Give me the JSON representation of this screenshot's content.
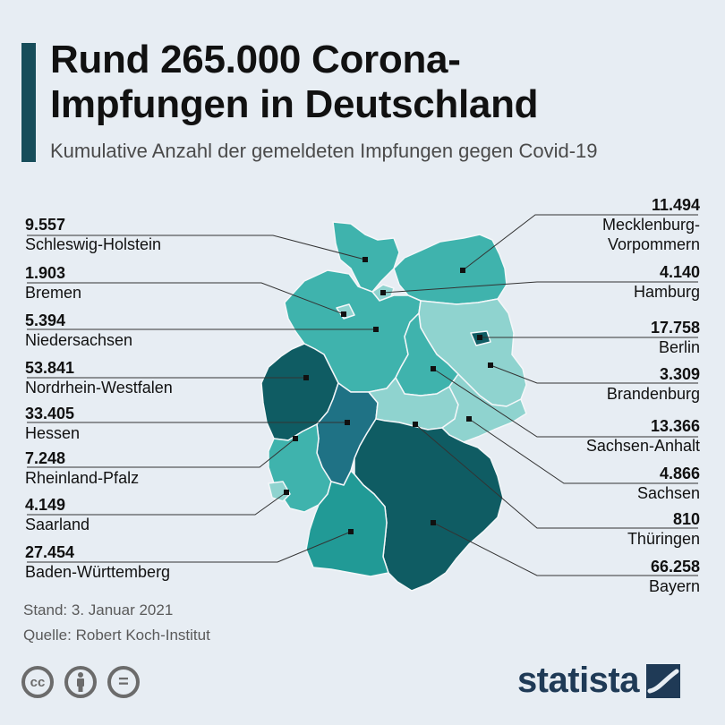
{
  "title_line1": "Rund 265.000 Corona-",
  "title_line2": "Impfungen in Deutschland",
  "subtitle": "Kumulative Anzahl der gemeldeten Impfungen gegen Covid-19",
  "colors": {
    "accent": "#174d5a",
    "lightest": "#8fd3cf",
    "light": "#6bc3bd",
    "mid": "#3fb3ad",
    "medium_dark": "#219a96",
    "dark_blue": "#1f7285",
    "darkest": "#0f5c63",
    "boundary": "#f4f7f9",
    "leader_line": "#333333"
  },
  "states_left": [
    {
      "value": "9.557",
      "name": "Schleswig-Holstein"
    },
    {
      "value": "1.903",
      "name": "Bremen"
    },
    {
      "value": "5.394",
      "name": "Niedersachsen"
    },
    {
      "value": "53.841",
      "name": "Nordrhein-Westfalen"
    },
    {
      "value": "33.405",
      "name": "Hessen"
    },
    {
      "value": "7.248",
      "name": "Rheinland-Pfalz"
    },
    {
      "value": "4.149",
      "name": "Saarland"
    },
    {
      "value": "27.454",
      "name": "Baden-Württemberg"
    }
  ],
  "states_right": [
    {
      "value": "11.494",
      "name": "Mecklenburg-",
      "name2": "Vorpommern"
    },
    {
      "value": "4.140",
      "name": "Hamburg"
    },
    {
      "value": "17.758",
      "name": "Berlin"
    },
    {
      "value": "3.309",
      "name": "Brandenburg"
    },
    {
      "value": "13.366",
      "name": "Sachsen-Anhalt"
    },
    {
      "value": "4.866",
      "name": "Sachsen"
    },
    {
      "value": "810",
      "name": "Thüringen"
    },
    {
      "value": "66.258",
      "name": "Bayern"
    }
  ],
  "stand": "Stand: 3. Januar 2021",
  "quelle": "Quelle: Robert Koch-Institut",
  "license_icons": [
    "cc-icon",
    "by-person-icon",
    "nd-equals-icon"
  ],
  "license_glyphs": {
    "cc": "cc",
    "nd": "="
  },
  "brand": "statista"
}
